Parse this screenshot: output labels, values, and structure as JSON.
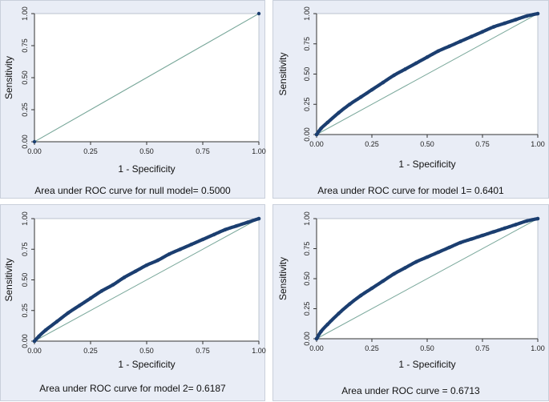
{
  "colors": {
    "curve": "#1b3e70",
    "reference": "#7aa89b",
    "panel_bg": "#e9edf6",
    "plot_bg": "#ffffff"
  },
  "chart_data": [
    {
      "type": "line",
      "title": "",
      "caption": "Area under ROC curve for null model= 0.5000",
      "xlabel": "1 - Specificity",
      "ylabel": "Sensitivity",
      "xlim": [
        0,
        1
      ],
      "ylim": [
        0,
        1
      ],
      "xticks": [
        "0.00",
        "0.25",
        "0.50",
        "0.75",
        "1.00"
      ],
      "yticks": [
        "0.00",
        "0.25",
        "0.50",
        "0.75",
        "1.00"
      ],
      "auc": 0.5,
      "series": [
        {
          "name": "ROC",
          "x": [
            0,
            1
          ],
          "y": [
            0,
            1
          ]
        }
      ],
      "reference_line": {
        "x": [
          0,
          1
        ],
        "y": [
          0,
          1
        ]
      }
    },
    {
      "type": "line",
      "title": "",
      "caption": "Area under ROC curve for model 1= 0.6401",
      "xlabel": "1 - Specificity",
      "ylabel": "Sensitivity",
      "xlim": [
        0,
        1
      ],
      "ylim": [
        0,
        1
      ],
      "xticks": [
        "0.00",
        "0.25",
        "0.50",
        "0.75",
        "1.00"
      ],
      "yticks": [
        "0.00",
        "0.25",
        "0.50",
        "0.75",
        "1.00"
      ],
      "auc": 0.6401,
      "series": [
        {
          "name": "ROC",
          "x": [
            0,
            0.02,
            0.05,
            0.1,
            0.15,
            0.2,
            0.25,
            0.3,
            0.35,
            0.4,
            0.45,
            0.5,
            0.55,
            0.6,
            0.65,
            0.7,
            0.75,
            0.8,
            0.85,
            0.9,
            0.95,
            1
          ],
          "y": [
            0,
            0.05,
            0.1,
            0.18,
            0.25,
            0.31,
            0.37,
            0.43,
            0.49,
            0.54,
            0.59,
            0.64,
            0.69,
            0.73,
            0.77,
            0.81,
            0.85,
            0.89,
            0.92,
            0.95,
            0.98,
            1
          ]
        }
      ],
      "reference_line": {
        "x": [
          0,
          1
        ],
        "y": [
          0,
          1
        ]
      }
    },
    {
      "type": "line",
      "title": "",
      "caption": "Area under ROC curve for model 2= 0.6187",
      "xlabel": "1 - Specificity",
      "ylabel": "Sensitivity",
      "xlim": [
        0,
        1
      ],
      "ylim": [
        0,
        1
      ],
      "xticks": [
        "0.00",
        "0.25",
        "0.50",
        "0.75",
        "1.00"
      ],
      "yticks": [
        "0.00",
        "0.25",
        "0.50",
        "0.75",
        "1.00"
      ],
      "auc": 0.6187,
      "series": [
        {
          "name": "ROC",
          "x": [
            0,
            0.02,
            0.05,
            0.1,
            0.15,
            0.2,
            0.25,
            0.3,
            0.35,
            0.4,
            0.45,
            0.5,
            0.55,
            0.6,
            0.65,
            0.7,
            0.75,
            0.8,
            0.85,
            0.9,
            0.95,
            1
          ],
          "y": [
            0,
            0.04,
            0.09,
            0.16,
            0.23,
            0.29,
            0.35,
            0.41,
            0.46,
            0.52,
            0.57,
            0.62,
            0.66,
            0.71,
            0.75,
            0.79,
            0.83,
            0.87,
            0.91,
            0.94,
            0.97,
            1
          ]
        }
      ],
      "reference_line": {
        "x": [
          0,
          1
        ],
        "y": [
          0,
          1
        ]
      }
    },
    {
      "type": "line",
      "title": "",
      "caption": "Area under ROC curve = 0.6713",
      "xlabel": "1 - Specificity",
      "ylabel": "Sensitivity",
      "xlim": [
        0,
        1
      ],
      "ylim": [
        0,
        1
      ],
      "xticks": [
        "0.00",
        "0.25",
        "0.50",
        "0.75",
        "1.00"
      ],
      "yticks": [
        "0.00",
        "0.25",
        "0.50",
        "0.75",
        "1.00"
      ],
      "auc": 0.6713,
      "series": [
        {
          "name": "ROC",
          "x": [
            0,
            0.02,
            0.05,
            0.1,
            0.15,
            0.2,
            0.25,
            0.3,
            0.35,
            0.4,
            0.45,
            0.5,
            0.55,
            0.6,
            0.65,
            0.7,
            0.75,
            0.8,
            0.85,
            0.9,
            0.95,
            1
          ],
          "y": [
            0,
            0.06,
            0.12,
            0.21,
            0.29,
            0.36,
            0.42,
            0.48,
            0.54,
            0.59,
            0.64,
            0.68,
            0.72,
            0.76,
            0.8,
            0.83,
            0.86,
            0.89,
            0.92,
            0.95,
            0.98,
            1
          ]
        }
      ],
      "reference_line": {
        "x": [
          0,
          1
        ],
        "y": [
          0,
          1
        ]
      }
    }
  ]
}
